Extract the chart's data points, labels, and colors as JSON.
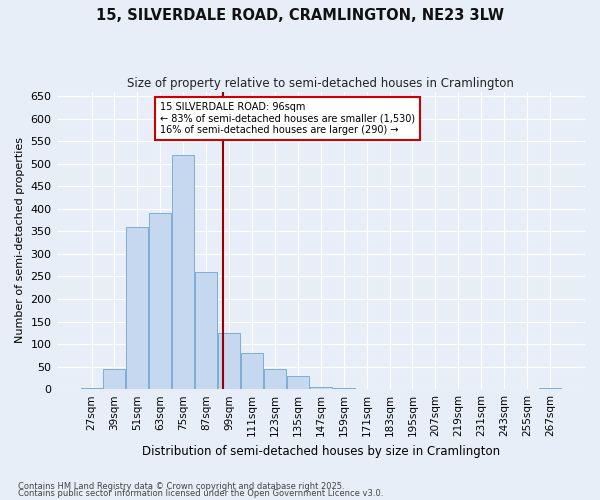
{
  "title": "15, SILVERDALE ROAD, CRAMLINGTON, NE23 3LW",
  "subtitle": "Size of property relative to semi-detached houses in Cramlington",
  "xlabel": "Distribution of semi-detached houses by size in Cramlington",
  "ylabel": "Number of semi-detached properties",
  "footnote1": "Contains HM Land Registry data © Crown copyright and database right 2025.",
  "footnote2": "Contains public sector information licensed under the Open Government Licence v3.0.",
  "annotation_title": "15 SILVERDALE ROAD: 96sqm",
  "annotation_line1": "← 83% of semi-detached houses are smaller (1,530)",
  "annotation_line2": "16% of semi-detached houses are larger (290) →",
  "property_size": 96,
  "categories": [
    27,
    39,
    51,
    63,
    75,
    87,
    99,
    111,
    123,
    135,
    147,
    159,
    171,
    183,
    195,
    207,
    219,
    231,
    243,
    255,
    267
  ],
  "values": [
    3,
    45,
    360,
    390,
    520,
    260,
    125,
    80,
    45,
    30,
    5,
    3,
    0,
    0,
    0,
    0,
    0,
    0,
    0,
    0,
    2
  ],
  "bar_color": "#c5d8ef",
  "bar_edge_color": "#7bafd4",
  "vline_color": "#990000",
  "annotation_box_color": "#cc0000",
  "background_color": "#e8eef7",
  "grid_color": "#ffffff",
  "ylim": [
    0,
    660
  ],
  "yticks": [
    0,
    50,
    100,
    150,
    200,
    250,
    300,
    350,
    400,
    450,
    500,
    550,
    600,
    650
  ]
}
